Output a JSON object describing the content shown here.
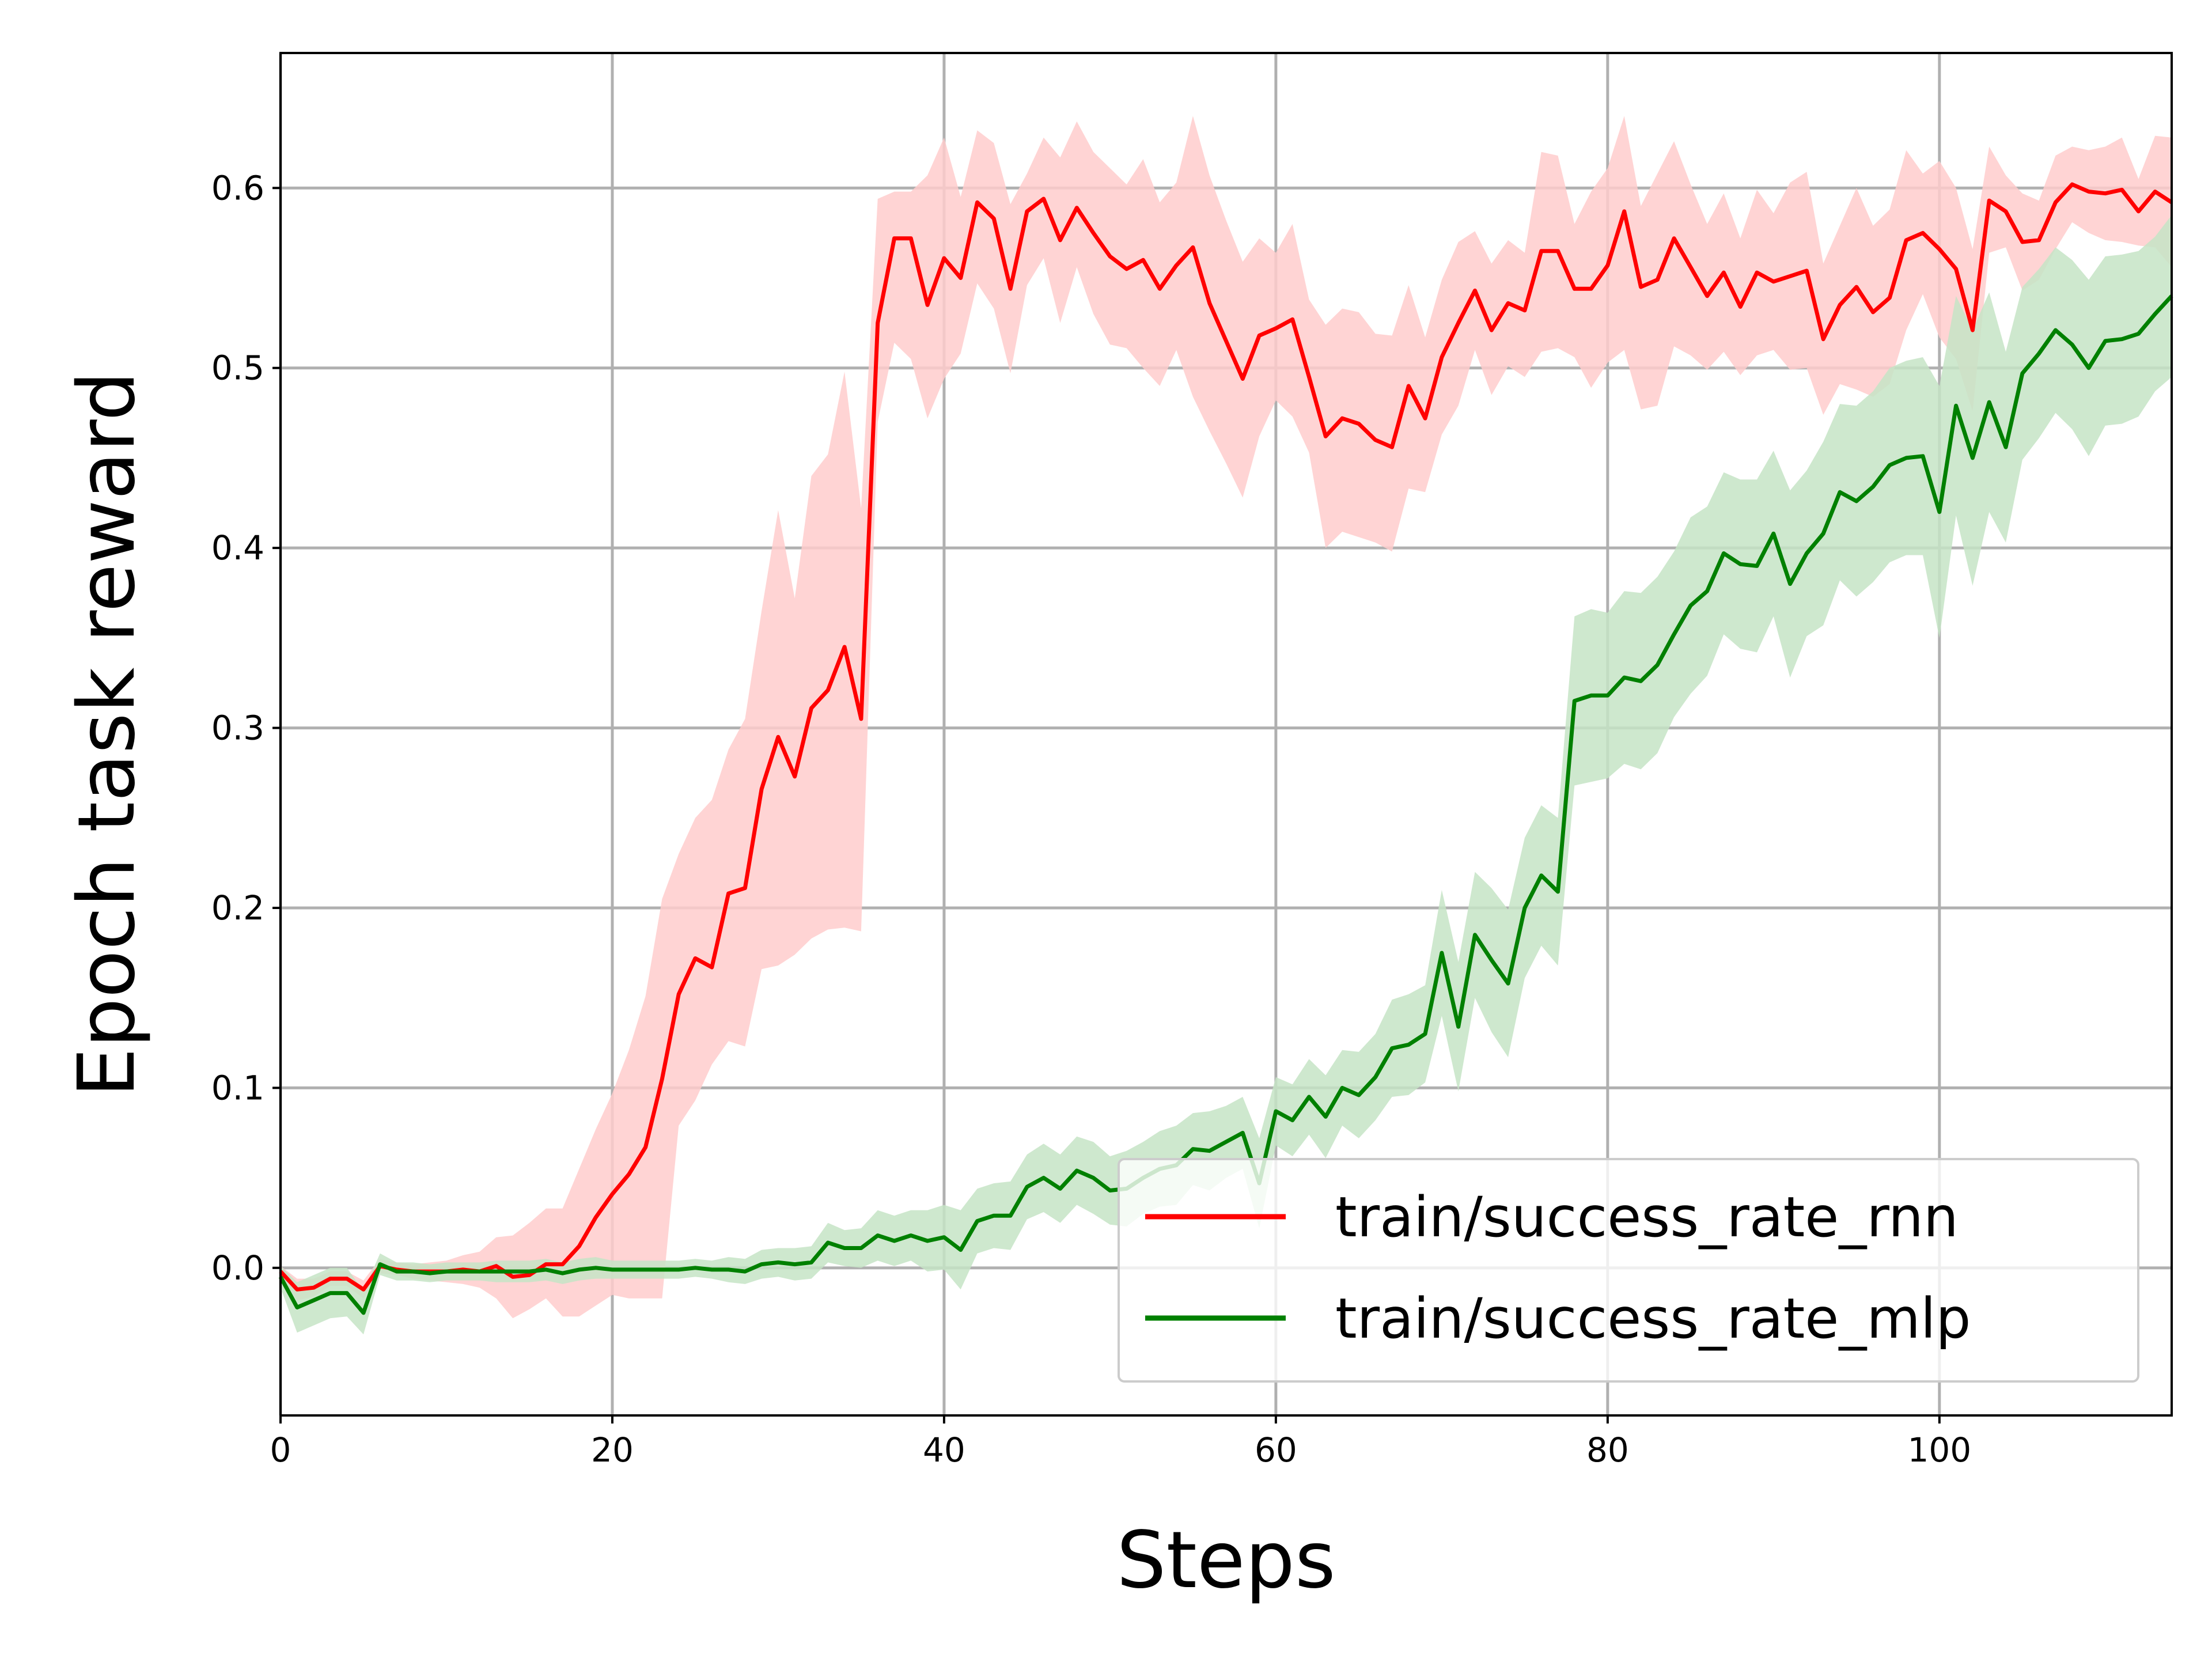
{
  "chart_data": {
    "type": "line",
    "title": "",
    "xlabel": "Steps",
    "ylabel": "Epoch task reward",
    "xlim": [
      0,
      114
    ],
    "ylim": [
      -0.082,
      0.675
    ],
    "x_ticks": [
      0,
      20,
      40,
      60,
      80,
      100
    ],
    "x_tick_labels": [
      "0",
      "20",
      "40",
      "60",
      "80",
      "100"
    ],
    "y_ticks": [
      0.0,
      0.1,
      0.2,
      0.3,
      0.4,
      0.5,
      0.6
    ],
    "y_tick_labels": [
      "0.0",
      "0.1",
      "0.2",
      "0.3",
      "0.4",
      "0.5",
      "0.6"
    ],
    "grid": true,
    "legend_position": "lower-right",
    "series": [
      {
        "name": "train/success_rate_rnn",
        "color": "#ff0000",
        "band_color": "#ffcccc",
        "x": [
          0,
          1,
          2,
          3,
          4,
          5,
          6,
          7,
          8,
          9,
          10,
          11,
          12,
          13,
          14,
          15,
          16,
          17,
          18,
          19,
          20,
          21,
          22,
          23,
          24,
          25,
          26,
          27,
          28,
          29,
          30,
          31,
          32,
          33,
          34,
          35,
          36,
          37,
          38,
          39,
          40,
          41,
          42,
          43,
          44,
          45,
          46,
          47,
          48,
          49,
          50,
          51,
          52,
          53,
          54,
          55,
          56,
          57,
          58,
          59,
          60,
          61,
          62,
          63,
          64,
          65,
          66,
          67,
          68,
          69,
          70,
          71,
          72,
          73,
          74,
          75,
          76,
          77,
          78,
          79,
          80,
          81,
          82,
          83,
          84,
          85,
          86,
          87,
          88,
          89,
          90,
          91,
          92,
          93,
          94,
          95,
          96,
          97,
          98,
          99,
          100,
          101,
          102,
          103,
          104,
          105,
          106,
          107,
          108,
          109,
          110,
          111,
          112,
          113,
          114
        ],
        "y": [
          -0.002,
          -0.012,
          -0.011,
          -0.006,
          -0.006,
          -0.012,
          0.001,
          -0.001,
          -0.002,
          -0.002,
          -0.002,
          -0.001,
          -0.002,
          0.001,
          -0.005,
          -0.004,
          0.002,
          0.002,
          0.012,
          0.028,
          0.041,
          0.052,
          0.067,
          0.105,
          0.152,
          0.172,
          0.167,
          0.208,
          0.211,
          0.266,
          0.295,
          0.273,
          0.311,
          0.321,
          0.345,
          0.305,
          0.525,
          0.572,
          0.572,
          0.535,
          0.561,
          0.55,
          0.592,
          0.583,
          0.544,
          0.587,
          0.594,
          0.571,
          0.589,
          0.575,
          0.562,
          0.555,
          0.56,
          0.544,
          0.557,
          0.567,
          0.536,
          0.515,
          0.494,
          0.518,
          0.522,
          0.527,
          0.495,
          0.462,
          0.472,
          0.469,
          0.46,
          0.456,
          0.49,
          0.472,
          0.506,
          0.525,
          0.543,
          0.521,
          0.536,
          0.532,
          0.565,
          0.565,
          0.544,
          0.544,
          0.557,
          0.587,
          0.545,
          0.549,
          0.572,
          0.556,
          0.54,
          0.553,
          0.534,
          0.553,
          0.548,
          0.551,
          0.554,
          0.516,
          0.535,
          0.545,
          0.531,
          0.539,
          0.571,
          0.575,
          0.566,
          0.555,
          0.521,
          0.593,
          0.587,
          0.57,
          0.571,
          0.592,
          0.602,
          0.598,
          0.597,
          0.599,
          0.587,
          0.598,
          0.592
        ],
        "lower": [
          -0.005,
          -0.018,
          -0.016,
          -0.01,
          -0.01,
          -0.017,
          -0.003,
          -0.004,
          -0.006,
          -0.007,
          -0.008,
          -0.009,
          -0.011,
          -0.017,
          -0.028,
          -0.023,
          -0.017,
          -0.027,
          -0.027,
          -0.021,
          -0.015,
          -0.017,
          -0.017,
          -0.017,
          0.079,
          0.093,
          0.113,
          0.126,
          0.123,
          0.166,
          0.168,
          0.174,
          0.183,
          0.188,
          0.189,
          0.187,
          0.47,
          0.514,
          0.505,
          0.472,
          0.494,
          0.508,
          0.547,
          0.533,
          0.497,
          0.546,
          0.561,
          0.525,
          0.556,
          0.53,
          0.513,
          0.511,
          0.5,
          0.49,
          0.51,
          0.484,
          0.465,
          0.447,
          0.428,
          0.462,
          0.482,
          0.473,
          0.453,
          0.4,
          0.409,
          0.406,
          0.403,
          0.398,
          0.433,
          0.431,
          0.463,
          0.479,
          0.51,
          0.485,
          0.501,
          0.495,
          0.509,
          0.511,
          0.506,
          0.489,
          0.503,
          0.51,
          0.477,
          0.479,
          0.512,
          0.507,
          0.499,
          0.509,
          0.496,
          0.507,
          0.51,
          0.499,
          0.5,
          0.474,
          0.491,
          0.488,
          0.484,
          0.491,
          0.521,
          0.541,
          0.517,
          0.505,
          0.476,
          0.564,
          0.567,
          0.543,
          0.549,
          0.566,
          0.581,
          0.575,
          0.571,
          0.57,
          0.568,
          0.567,
          0.556
        ],
        "upper": [
          0.001,
          -0.006,
          -0.006,
          -0.002,
          -0.002,
          -0.007,
          0.005,
          0.003,
          0.002,
          0.003,
          0.004,
          0.007,
          0.009,
          0.017,
          0.018,
          0.025,
          0.033,
          0.033,
          0.055,
          0.077,
          0.097,
          0.121,
          0.151,
          0.205,
          0.23,
          0.25,
          0.26,
          0.288,
          0.305,
          0.365,
          0.421,
          0.372,
          0.44,
          0.452,
          0.498,
          0.422,
          0.594,
          0.598,
          0.598,
          0.607,
          0.628,
          0.595,
          0.632,
          0.625,
          0.591,
          0.608,
          0.628,
          0.617,
          0.637,
          0.62,
          0.611,
          0.602,
          0.616,
          0.592,
          0.603,
          0.64,
          0.607,
          0.582,
          0.559,
          0.572,
          0.564,
          0.58,
          0.538,
          0.524,
          0.533,
          0.531,
          0.519,
          0.518,
          0.546,
          0.517,
          0.549,
          0.57,
          0.576,
          0.558,
          0.571,
          0.564,
          0.62,
          0.618,
          0.58,
          0.598,
          0.611,
          0.64,
          0.59,
          0.608,
          0.626,
          0.602,
          0.58,
          0.597,
          0.572,
          0.599,
          0.586,
          0.603,
          0.609,
          0.558,
          0.579,
          0.6,
          0.579,
          0.588,
          0.621,
          0.608,
          0.615,
          0.6,
          0.566,
          0.623,
          0.607,
          0.597,
          0.593,
          0.618,
          0.623,
          0.621,
          0.623,
          0.628,
          0.605,
          0.629,
          0.628
        ]
      },
      {
        "name": "train/success_rate_mlp",
        "color": "#008000",
        "band_color": "#c6e4c6",
        "x": [
          0,
          1,
          2,
          3,
          4,
          5,
          6,
          7,
          8,
          9,
          10,
          11,
          12,
          13,
          14,
          15,
          16,
          17,
          18,
          19,
          20,
          21,
          22,
          23,
          24,
          25,
          26,
          27,
          28,
          29,
          30,
          31,
          32,
          33,
          34,
          35,
          36,
          37,
          38,
          39,
          40,
          41,
          42,
          43,
          44,
          45,
          46,
          47,
          48,
          49,
          50,
          51,
          52,
          53,
          54,
          55,
          56,
          57,
          58,
          59,
          60,
          61,
          62,
          63,
          64,
          65,
          66,
          67,
          68,
          69,
          70,
          71,
          72,
          73,
          74,
          75,
          76,
          77,
          78,
          79,
          80,
          81,
          82,
          83,
          84,
          85,
          86,
          87,
          88,
          89,
          90,
          91,
          92,
          93,
          94,
          95,
          96,
          97,
          98,
          99,
          100,
          101,
          102,
          103,
          104,
          105,
          106,
          107,
          108,
          109,
          110,
          111,
          112,
          113,
          114
        ],
        "y": [
          -0.005,
          -0.022,
          -0.018,
          -0.014,
          -0.014,
          -0.025,
          0.002,
          -0.002,
          -0.002,
          -0.003,
          -0.002,
          -0.002,
          -0.002,
          -0.002,
          -0.002,
          -0.002,
          -0.001,
          -0.003,
          -0.001,
          0.0,
          -0.001,
          -0.001,
          -0.001,
          -0.001,
          -0.001,
          0.0,
          -0.001,
          -0.001,
          -0.002,
          0.002,
          0.003,
          0.002,
          0.003,
          0.014,
          0.011,
          0.011,
          0.018,
          0.015,
          0.018,
          0.015,
          0.017,
          0.01,
          0.026,
          0.029,
          0.029,
          0.045,
          0.05,
          0.044,
          0.054,
          0.05,
          0.043,
          0.044,
          0.05,
          0.055,
          0.057,
          0.066,
          0.065,
          0.07,
          0.075,
          0.047,
          0.087,
          0.082,
          0.095,
          0.084,
          0.1,
          0.096,
          0.106,
          0.122,
          0.124,
          0.13,
          0.175,
          0.134,
          0.185,
          0.171,
          0.158,
          0.2,
          0.218,
          0.209,
          0.315,
          0.318,
          0.318,
          0.328,
          0.326,
          0.335,
          0.352,
          0.368,
          0.376,
          0.397,
          0.391,
          0.39,
          0.408,
          0.38,
          0.397,
          0.408,
          0.431,
          0.426,
          0.434,
          0.446,
          0.45,
          0.451,
          0.42,
          0.479,
          0.45,
          0.481,
          0.456,
          0.497,
          0.508,
          0.521,
          0.513,
          0.5,
          0.515,
          0.516,
          0.519,
          0.53,
          0.54
        ],
        "lower": [
          -0.011,
          -0.036,
          -0.032,
          -0.028,
          -0.027,
          -0.037,
          -0.004,
          -0.007,
          -0.007,
          -0.008,
          -0.007,
          -0.007,
          -0.007,
          -0.008,
          -0.008,
          -0.008,
          -0.007,
          -0.009,
          -0.007,
          -0.006,
          -0.006,
          -0.006,
          -0.006,
          -0.006,
          -0.006,
          -0.005,
          -0.006,
          -0.008,
          -0.009,
          -0.006,
          -0.005,
          -0.007,
          -0.006,
          0.003,
          0.001,
          0.0,
          0.004,
          0.001,
          0.004,
          -0.002,
          -0.001,
          -0.012,
          0.008,
          0.011,
          0.01,
          0.027,
          0.031,
          0.025,
          0.035,
          0.03,
          0.024,
          0.023,
          0.03,
          0.034,
          0.035,
          0.046,
          0.043,
          0.05,
          0.055,
          0.022,
          0.068,
          0.062,
          0.074,
          0.061,
          0.079,
          0.072,
          0.082,
          0.095,
          0.096,
          0.103,
          0.14,
          0.098,
          0.15,
          0.131,
          0.117,
          0.161,
          0.179,
          0.168,
          0.268,
          0.27,
          0.272,
          0.28,
          0.277,
          0.286,
          0.306,
          0.319,
          0.329,
          0.352,
          0.344,
          0.342,
          0.362,
          0.328,
          0.351,
          0.357,
          0.382,
          0.373,
          0.381,
          0.392,
          0.396,
          0.396,
          0.35,
          0.418,
          0.379,
          0.42,
          0.403,
          0.449,
          0.461,
          0.475,
          0.466,
          0.451,
          0.468,
          0.469,
          0.473,
          0.487,
          0.495
        ],
        "upper": [
          0.001,
          -0.008,
          -0.004,
          0.0,
          0.0,
          -0.013,
          0.008,
          0.003,
          0.003,
          0.002,
          0.003,
          0.003,
          0.003,
          0.004,
          0.004,
          0.004,
          0.005,
          0.003,
          0.005,
          0.006,
          0.004,
          0.004,
          0.004,
          0.004,
          0.004,
          0.005,
          0.004,
          0.006,
          0.005,
          0.01,
          0.011,
          0.011,
          0.012,
          0.025,
          0.021,
          0.022,
          0.032,
          0.029,
          0.032,
          0.032,
          0.035,
          0.032,
          0.044,
          0.047,
          0.048,
          0.063,
          0.069,
          0.063,
          0.073,
          0.07,
          0.062,
          0.065,
          0.07,
          0.076,
          0.079,
          0.086,
          0.087,
          0.09,
          0.095,
          0.072,
          0.106,
          0.102,
          0.116,
          0.107,
          0.121,
          0.12,
          0.13,
          0.149,
          0.152,
          0.157,
          0.21,
          0.17,
          0.22,
          0.211,
          0.199,
          0.239,
          0.257,
          0.25,
          0.362,
          0.366,
          0.364,
          0.376,
          0.375,
          0.384,
          0.398,
          0.417,
          0.423,
          0.442,
          0.438,
          0.438,
          0.454,
          0.432,
          0.443,
          0.459,
          0.48,
          0.479,
          0.487,
          0.5,
          0.504,
          0.506,
          0.49,
          0.54,
          0.521,
          0.542,
          0.509,
          0.545,
          0.555,
          0.567,
          0.56,
          0.549,
          0.562,
          0.563,
          0.565,
          0.573,
          0.585
        ]
      }
    ]
  }
}
